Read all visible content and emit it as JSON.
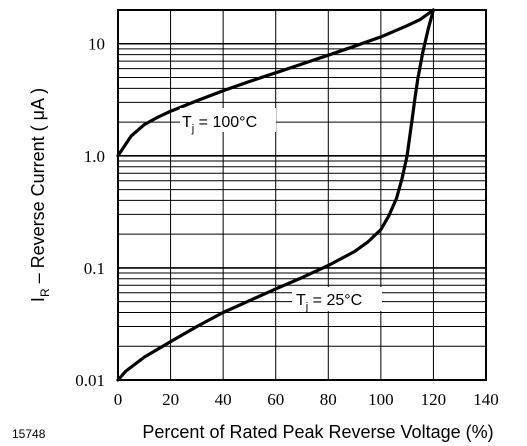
{
  "figure_id": "15748",
  "chart_data": {
    "type": "line",
    "xlabel": "Percent of Rated Peak Reverse Voltage (%)",
    "ylabel": {
      "main": "I",
      "sub": "R",
      "rest": " – Reverse Current ( μA )"
    },
    "xlim": [
      0,
      140
    ],
    "ylim": [
      0.01,
      20
    ],
    "yscale": "log",
    "grid": true,
    "x_ticks": [
      "0",
      "20",
      "40",
      "60",
      "80",
      "100",
      "120",
      "140"
    ],
    "y_ticks": [
      "0.01",
      "0.1",
      "1.0",
      "10"
    ],
    "series": [
      {
        "name": "Tj = 100°C",
        "label": {
          "pre": "T",
          "sub": "j",
          "post": " = 100°C"
        },
        "x": [
          0,
          5,
          10,
          15,
          20,
          30,
          40,
          50,
          60,
          70,
          80,
          90,
          100,
          110,
          115,
          120
        ],
        "y": [
          1.0,
          1.5,
          1.9,
          2.2,
          2.5,
          3.1,
          3.8,
          4.6,
          5.5,
          6.6,
          7.9,
          9.5,
          11.5,
          14.5,
          16.5,
          20
        ]
      },
      {
        "name": "Tj = 25°C",
        "label": {
          "pre": "T",
          "sub": "j",
          "post": " = 25°C"
        },
        "x": [
          0,
          3,
          10,
          20,
          30,
          40,
          50,
          60,
          70,
          80,
          90,
          95,
          100,
          103,
          106,
          108,
          110,
          111,
          112,
          113,
          114,
          116,
          118,
          120
        ],
        "y": [
          0.01,
          0.012,
          0.016,
          0.022,
          0.03,
          0.04,
          0.051,
          0.065,
          0.082,
          0.105,
          0.14,
          0.17,
          0.22,
          0.29,
          0.42,
          0.62,
          1.0,
          1.5,
          2.2,
          3.3,
          4.8,
          8.5,
          13.5,
          20
        ]
      }
    ]
  }
}
